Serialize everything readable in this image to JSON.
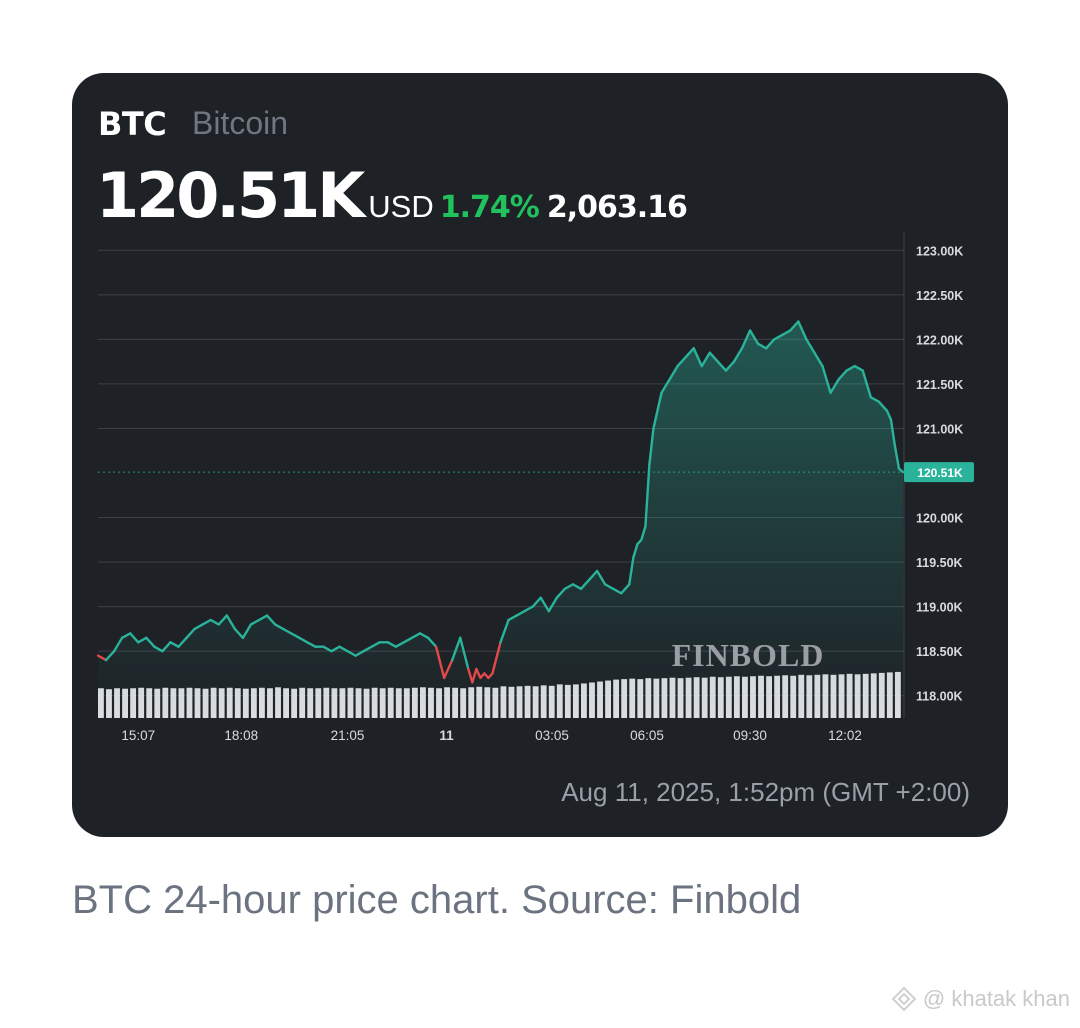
{
  "asset": {
    "symbol": "BTC",
    "name": "Bitcoin",
    "price": "120.51K",
    "currency": "USD",
    "change_percent": "1.74%",
    "change_value": "2,063.16"
  },
  "timestamp": "Aug 11, 2025, 1:52pm (GMT +2:00)",
  "caption": "BTC 24-hour price chart. Source: Finbold",
  "watermark": "@ khatak khan",
  "colors": {
    "background": "#1e2126",
    "line_up": "#2ab39a",
    "line_down": "#e04a4a",
    "positive": "#21c25e",
    "grid": "#4a4f57",
    "label_badge": "#2ab39a"
  },
  "chart_data": {
    "type": "line",
    "title": "",
    "xlabel": "",
    "ylabel": "",
    "ylim": [
      117.75,
      123.25
    ],
    "y_ticks": [
      "123.00K",
      "122.50K",
      "122.00K",
      "121.50K",
      "121.00K",
      "120.51K",
      "120.00K",
      "119.50K",
      "119.00K",
      "118.50K",
      "118.00K"
    ],
    "y_tick_values": [
      123.0,
      122.5,
      122.0,
      121.5,
      121.0,
      120.51,
      120.0,
      119.5,
      119.0,
      118.5,
      118.0
    ],
    "x_ticks": [
      "15:07",
      "18:08",
      "21:05",
      "11",
      "03:05",
      "06:05",
      "09:30",
      "12:02"
    ],
    "x_tick_positions": [
      0.05,
      0.178,
      0.31,
      0.433,
      0.564,
      0.682,
      0.81,
      0.928
    ],
    "current_value": 120.51,
    "current_label": "120.51K",
    "grid": true,
    "reference_value": 118.45,
    "price_series": [
      [
        0.0,
        118.45
      ],
      [
        0.01,
        118.4
      ],
      [
        0.02,
        118.5
      ],
      [
        0.03,
        118.65
      ],
      [
        0.04,
        118.7
      ],
      [
        0.05,
        118.6
      ],
      [
        0.06,
        118.65
      ],
      [
        0.07,
        118.55
      ],
      [
        0.08,
        118.5
      ],
      [
        0.09,
        118.6
      ],
      [
        0.1,
        118.55
      ],
      [
        0.11,
        118.65
      ],
      [
        0.12,
        118.75
      ],
      [
        0.13,
        118.8
      ],
      [
        0.14,
        118.85
      ],
      [
        0.15,
        118.8
      ],
      [
        0.16,
        118.9
      ],
      [
        0.17,
        118.75
      ],
      [
        0.18,
        118.65
      ],
      [
        0.19,
        118.8
      ],
      [
        0.2,
        118.85
      ],
      [
        0.21,
        118.9
      ],
      [
        0.22,
        118.8
      ],
      [
        0.23,
        118.75
      ],
      [
        0.24,
        118.7
      ],
      [
        0.25,
        118.65
      ],
      [
        0.26,
        118.6
      ],
      [
        0.27,
        118.55
      ],
      [
        0.28,
        118.55
      ],
      [
        0.29,
        118.5
      ],
      [
        0.3,
        118.55
      ],
      [
        0.31,
        118.5
      ],
      [
        0.32,
        118.45
      ],
      [
        0.33,
        118.5
      ],
      [
        0.34,
        118.55
      ],
      [
        0.35,
        118.6
      ],
      [
        0.36,
        118.6
      ],
      [
        0.37,
        118.55
      ],
      [
        0.38,
        118.6
      ],
      [
        0.39,
        118.65
      ],
      [
        0.4,
        118.7
      ],
      [
        0.41,
        118.65
      ],
      [
        0.42,
        118.55
      ],
      [
        0.43,
        118.2
      ],
      [
        0.44,
        118.4
      ],
      [
        0.45,
        118.65
      ],
      [
        0.46,
        118.3
      ],
      [
        0.465,
        118.15
      ],
      [
        0.47,
        118.3
      ],
      [
        0.475,
        118.2
      ],
      [
        0.48,
        118.25
      ],
      [
        0.485,
        118.2
      ],
      [
        0.49,
        118.25
      ],
      [
        0.5,
        118.6
      ],
      [
        0.51,
        118.85
      ],
      [
        0.52,
        118.9
      ],
      [
        0.53,
        118.95
      ],
      [
        0.54,
        119.0
      ],
      [
        0.55,
        119.1
      ],
      [
        0.56,
        118.95
      ],
      [
        0.57,
        119.1
      ],
      [
        0.58,
        119.2
      ],
      [
        0.59,
        119.25
      ],
      [
        0.6,
        119.2
      ],
      [
        0.61,
        119.3
      ],
      [
        0.62,
        119.4
      ],
      [
        0.63,
        119.25
      ],
      [
        0.64,
        119.2
      ],
      [
        0.65,
        119.15
      ],
      [
        0.66,
        119.25
      ],
      [
        0.665,
        119.55
      ],
      [
        0.67,
        119.7
      ],
      [
        0.675,
        119.75
      ],
      [
        0.68,
        119.9
      ],
      [
        0.685,
        120.6
      ],
      [
        0.69,
        121.0
      ],
      [
        0.7,
        121.4
      ],
      [
        0.71,
        121.55
      ],
      [
        0.72,
        121.7
      ],
      [
        0.73,
        121.8
      ],
      [
        0.74,
        121.9
      ],
      [
        0.75,
        121.7
      ],
      [
        0.76,
        121.85
      ],
      [
        0.77,
        121.75
      ],
      [
        0.78,
        121.65
      ],
      [
        0.79,
        121.75
      ],
      [
        0.8,
        121.9
      ],
      [
        0.81,
        122.1
      ],
      [
        0.82,
        121.95
      ],
      [
        0.83,
        121.9
      ],
      [
        0.84,
        122.0
      ],
      [
        0.85,
        122.05
      ],
      [
        0.86,
        122.1
      ],
      [
        0.87,
        122.2
      ],
      [
        0.88,
        122.0
      ],
      [
        0.89,
        121.85
      ],
      [
        0.9,
        121.7
      ],
      [
        0.91,
        121.4
      ],
      [
        0.92,
        121.55
      ],
      [
        0.93,
        121.65
      ],
      [
        0.94,
        121.7
      ],
      [
        0.95,
        121.65
      ],
      [
        0.96,
        121.35
      ],
      [
        0.97,
        121.3
      ],
      [
        0.98,
        121.2
      ],
      [
        0.985,
        121.1
      ],
      [
        0.99,
        120.8
      ],
      [
        0.995,
        120.55
      ],
      [
        1.0,
        120.51
      ]
    ],
    "volume_series": [
      0.62,
      0.6,
      0.62,
      0.61,
      0.62,
      0.63,
      0.62,
      0.61,
      0.63,
      0.62,
      0.62,
      0.63,
      0.62,
      0.61,
      0.63,
      0.62,
      0.63,
      0.62,
      0.61,
      0.62,
      0.63,
      0.62,
      0.64,
      0.62,
      0.61,
      0.63,
      0.62,
      0.62,
      0.63,
      0.62,
      0.62,
      0.63,
      0.62,
      0.61,
      0.63,
      0.62,
      0.63,
      0.62,
      0.62,
      0.63,
      0.64,
      0.63,
      0.62,
      0.64,
      0.63,
      0.62,
      0.64,
      0.65,
      0.64,
      0.63,
      0.66,
      0.65,
      0.66,
      0.67,
      0.66,
      0.68,
      0.67,
      0.7,
      0.69,
      0.7,
      0.72,
      0.74,
      0.76,
      0.78,
      0.8,
      0.81,
      0.82,
      0.81,
      0.83,
      0.82,
      0.83,
      0.84,
      0.83,
      0.84,
      0.85,
      0.84,
      0.86,
      0.85,
      0.86,
      0.87,
      0.86,
      0.87,
      0.88,
      0.87,
      0.88,
      0.89,
      0.88,
      0.9,
      0.89,
      0.9,
      0.91,
      0.9,
      0.91,
      0.92,
      0.91,
      0.92,
      0.93,
      0.94,
      0.95,
      0.96
    ],
    "logo_text": "FINBOLD"
  }
}
